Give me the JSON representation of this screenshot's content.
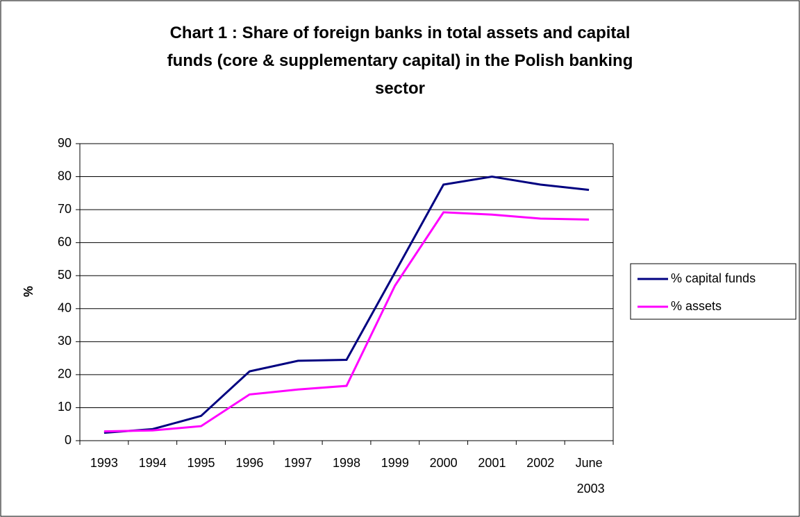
{
  "chart_data": {
    "type": "line",
    "title": "Chart 1 : Share of foreign banks in total assets and capital funds (core & supplementary capital) in the Polish banking sector",
    "y_label": "%",
    "categories": [
      "1993",
      "1994",
      "1995",
      "1996",
      "1997",
      "1998",
      "1999",
      "2000",
      "2001",
      "2002",
      "June 2003"
    ],
    "series": [
      {
        "name": "% capital funds",
        "color": "#000080",
        "values": [
          2.4,
          3.5,
          7.5,
          21,
          24.2,
          24.5,
          51,
          77.6,
          80,
          77.6,
          76
        ]
      },
      {
        "name": "% assets",
        "color": "#ff00ff",
        "values": [
          2.8,
          3.1,
          4.4,
          14,
          15.5,
          16.6,
          47,
          69.2,
          68.5,
          67.3,
          67
        ]
      }
    ],
    "ylim": [
      0,
      90
    ],
    "yticks": [
      0,
      10,
      20,
      30,
      40,
      50,
      60,
      70,
      80,
      90
    ],
    "grid": true,
    "legend": "right"
  }
}
